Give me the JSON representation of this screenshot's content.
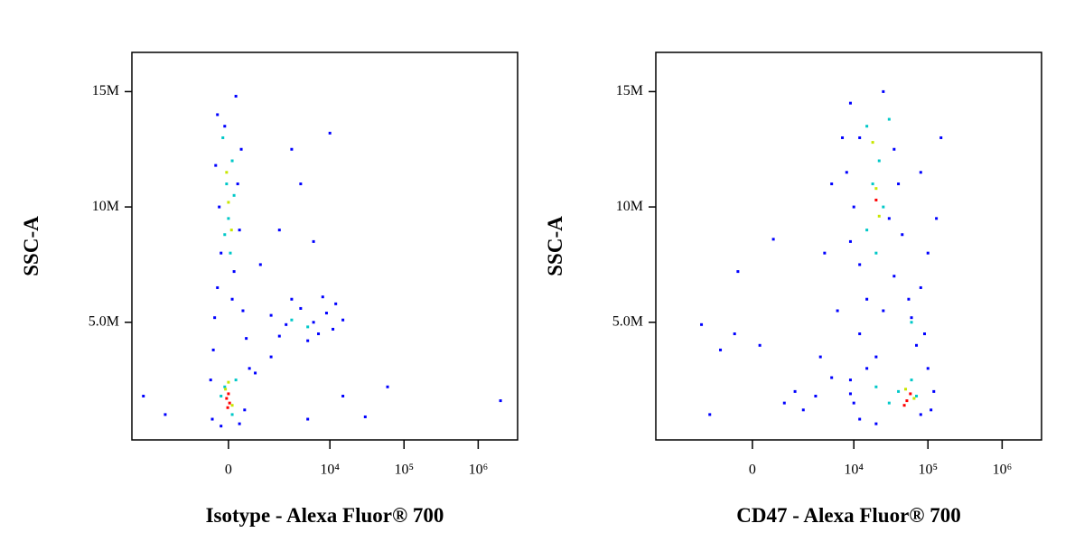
{
  "chart_data": [
    {
      "type": "scatter",
      "xlabel": "Isotype - Alexa Fluor® 700",
      "ylabel": "SSC-A",
      "xscale": "biexponential",
      "xlim": [
        -8600,
        3400000
      ],
      "ylim": [
        -100000,
        16700000
      ],
      "xticks": [
        0,
        {
          "value": 10000,
          "label": "10⁴"
        },
        {
          "value": 100000,
          "label": "10⁵"
        },
        {
          "value": 1000000,
          "label": "10⁶"
        }
      ],
      "yticks": [
        {
          "value": 5000000,
          "label": "5.0M"
        },
        {
          "value": 10000000,
          "label": "10M"
        },
        {
          "value": 15000000,
          "label": "15M"
        }
      ],
      "series": [
        {
          "color": "#0000ff",
          "x": [
            -300,
            200,
            -100,
            350,
            -350,
            250,
            -250,
            300,
            -200,
            150,
            -300,
            100,
            400,
            -380,
            500,
            -420,
            600,
            -500,
            450,
            -450,
            300,
            -200,
            1500,
            2500,
            4000,
            6000,
            9000,
            12000,
            15000,
            7000,
            3000,
            2000,
            5000,
            8000,
            11000,
            1000,
            2000,
            4000,
            6000,
            10000,
            3000,
            15000,
            60000,
            2000000,
            -6000,
            -3000,
            5000,
            30000,
            800,
            1500
          ],
          "y": [
            14000000,
            14800000,
            13500000,
            12500000,
            11800000,
            11000000,
            10000000,
            9000000,
            8000000,
            7200000,
            6500000,
            6000000,
            5500000,
            5200000,
            4300000,
            3800000,
            3000000,
            2500000,
            1200000,
            800000,
            600000,
            500000,
            5300000,
            4900000,
            5600000,
            5000000,
            5400000,
            5800000,
            5100000,
            4500000,
            6000000,
            4400000,
            4200000,
            6100000,
            4700000,
            7500000,
            9000000,
            11000000,
            8500000,
            13200000,
            12500000,
            1800000,
            2200000,
            1600000,
            1800000,
            1000000,
            800000,
            900000,
            2800000,
            3500000
          ]
        },
        {
          "color": "#00c8c8",
          "x": [
            -150,
            100,
            -50,
            150,
            0,
            -100,
            50,
            -200,
            200,
            100,
            -100,
            3000,
            5000
          ],
          "y": [
            13000000,
            12000000,
            11000000,
            10500000,
            9500000,
            8800000,
            8000000,
            1800000,
            2500000,
            1000000,
            2200000,
            5100000,
            4800000
          ]
        },
        {
          "color": "#c8e600",
          "x": [
            0,
            -50,
            80,
            -80,
            100,
            0
          ],
          "y": [
            10200000,
            11500000,
            9000000,
            2100000,
            1400000,
            2400000
          ]
        },
        {
          "color": "#ff0000",
          "x": [
            -50,
            30,
            0,
            -20
          ],
          "y": [
            1700000,
            1500000,
            1900000,
            1300000
          ]
        }
      ]
    },
    {
      "type": "scatter",
      "xlabel": "CD47 - Alexa Fluor® 700",
      "ylabel": "SSC-A",
      "xscale": "biexponential",
      "xlim": [
        -8600,
        3400000
      ],
      "ylim": [
        -100000,
        16700000
      ],
      "xticks": [
        0,
        {
          "value": 10000,
          "label": "10⁴"
        },
        {
          "value": 100000,
          "label": "10⁵"
        },
        {
          "value": 1000000,
          "label": "10⁶"
        }
      ],
      "yticks": [
        {
          "value": 5000000,
          "label": "5.0M"
        },
        {
          "value": 10000000,
          "label": "10M"
        },
        {
          "value": 15000000,
          "label": "15M"
        }
      ],
      "series": [
        {
          "color": "#0000ff",
          "x": [
            9000,
            25000,
            12000,
            35000,
            8000,
            40000,
            10000,
            30000,
            9000,
            45000,
            12000,
            35000,
            15000,
            25000,
            12000,
            20000,
            9000,
            10000,
            12000,
            20000,
            80000,
            120000,
            100000,
            70000,
            55000,
            80000,
            60000,
            90000,
            15000,
            110000,
            9000,
            -2000,
            -500,
            -1000,
            200,
            600,
            -400,
            1500,
            3000,
            5000,
            3500,
            2000,
            -1500,
            6000,
            4000,
            5000,
            7000,
            80000,
            100000,
            130000,
            150000,
            1000
          ],
          "y": [
            14500000,
            15000000,
            13000000,
            12500000,
            11500000,
            11000000,
            10000000,
            9500000,
            8500000,
            8800000,
            7500000,
            7000000,
            6000000,
            5500000,
            4500000,
            3500000,
            2500000,
            1500000,
            800000,
            600000,
            1000000,
            2000000,
            3000000,
            4000000,
            6000000,
            6500000,
            5200000,
            4500000,
            3000000,
            1200000,
            1900000,
            4900000,
            4500000,
            3800000,
            4000000,
            8600000,
            7200000,
            2000000,
            1800000,
            2600000,
            3500000,
            1200000,
            1000000,
            5500000,
            8000000,
            11000000,
            13000000,
            11500000,
            8000000,
            9500000,
            13000000,
            1500000
          ]
        },
        {
          "color": "#00c8c8",
          "x": [
            15000,
            22000,
            18000,
            25000,
            15000,
            20000,
            30000,
            40000,
            60000,
            30000,
            70000,
            60000,
            20000
          ],
          "y": [
            13500000,
            12000000,
            11000000,
            10000000,
            9000000,
            8000000,
            13800000,
            2000000,
            2500000,
            1500000,
            1800000,
            5000000,
            2200000
          ]
        },
        {
          "color": "#c8e600",
          "x": [
            18000,
            20000,
            22000,
            50000,
            65000
          ],
          "y": [
            12800000,
            10800000,
            9600000,
            2100000,
            1700000
          ]
        },
        {
          "color": "#ff0000",
          "x": [
            20000,
            52000,
            58000,
            48000
          ],
          "y": [
            10300000,
            1600000,
            1900000,
            1400000
          ]
        }
      ]
    }
  ]
}
